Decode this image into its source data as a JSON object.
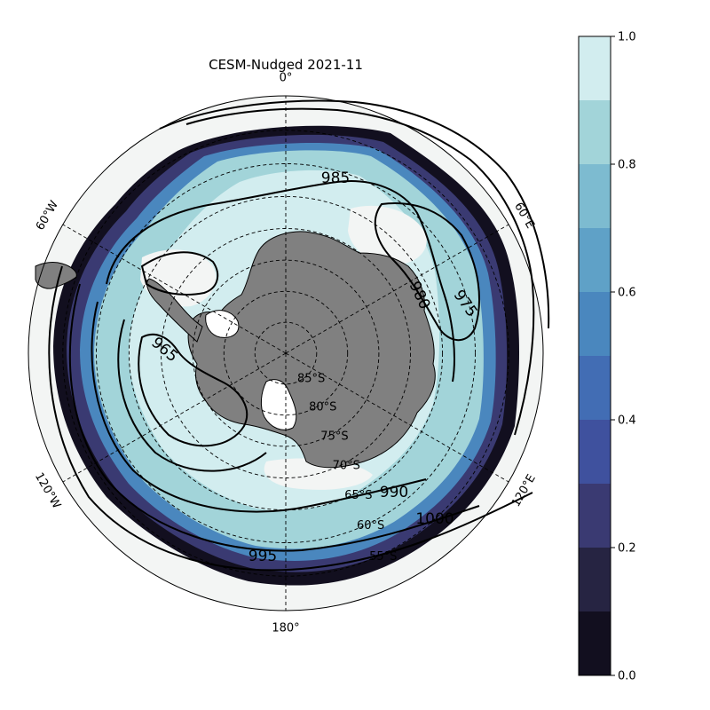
{
  "title": "CESM-Nudged 2021-11",
  "map": {
    "projection": "south-polar-stereographic",
    "ocean_color": "#f3f5f4",
    "land_color": "#808080",
    "meridian_labels": [
      {
        "text": "0°",
        "lon": 0
      },
      {
        "text": "60°E",
        "lon": 60
      },
      {
        "text": "120°E",
        "lon": 120
      },
      {
        "text": "180°",
        "lon": 180
      },
      {
        "text": "120°W",
        "lon": -120
      },
      {
        "text": "60°W",
        "lon": -60
      }
    ],
    "latitude_labels": [
      "85°S",
      "80°S",
      "75°S",
      "70°S",
      "65°S",
      "60°S",
      "55°S"
    ],
    "latitude_circles": [
      85,
      80,
      75,
      70,
      65,
      60,
      55
    ],
    "contour_labels": [
      "985",
      "980",
      "975",
      "965",
      "990",
      "1000",
      "995"
    ]
  },
  "colorbar": {
    "ticks": [
      "0.0",
      "0.2",
      "0.4",
      "0.6",
      "0.8",
      "1.0"
    ],
    "min": 0,
    "max": 1,
    "levels": [
      {
        "from": 0.0,
        "to": 0.1,
        "color": "#120f1f"
      },
      {
        "from": 0.1,
        "to": 0.2,
        "color": "#262442"
      },
      {
        "from": 0.2,
        "to": 0.3,
        "color": "#3a3a72"
      },
      {
        "from": 0.3,
        "to": 0.4,
        "color": "#3f519e"
      },
      {
        "from": 0.4,
        "to": 0.5,
        "color": "#426db4"
      },
      {
        "from": 0.5,
        "to": 0.6,
        "color": "#4a87be"
      },
      {
        "from": 0.6,
        "to": 0.7,
        "color": "#5fa1c7"
      },
      {
        "from": 0.7,
        "to": 0.8,
        "color": "#7dbbd0"
      },
      {
        "from": 0.8,
        "to": 0.9,
        "color": "#a2d4d9"
      },
      {
        "from": 0.9,
        "to": 1.0,
        "color": "#d2edef"
      }
    ]
  }
}
